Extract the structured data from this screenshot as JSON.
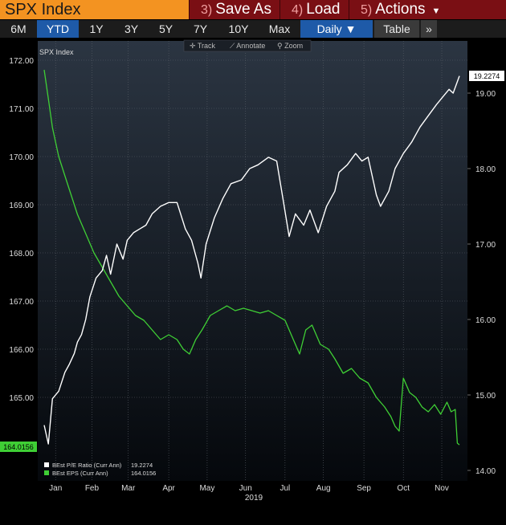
{
  "header": {
    "title": "SPX Index",
    "menu": [
      {
        "num": "3)",
        "label": "Save As",
        "caret": ""
      },
      {
        "num": "4)",
        "label": "Load",
        "caret": ""
      },
      {
        "num": "5)",
        "label": "Actions",
        "caret": "▼"
      }
    ]
  },
  "tabs": {
    "periods": [
      "6M",
      "YTD",
      "1Y",
      "3Y",
      "5Y",
      "7Y",
      "10Y",
      "Max"
    ],
    "active": "YTD",
    "frequency": "Daily ▼",
    "table": "Table",
    "more": "»"
  },
  "toolbar": {
    "track": "✛ Track",
    "annotate": "⟋ Annotate",
    "zoom": "⚲ Zoom"
  },
  "colors": {
    "pe_line": "#ffffff",
    "eps_line": "#3fcf35",
    "background_top": "#2b3542",
    "background_bottom": "#05080c",
    "title_bg": "#f39321",
    "menu_bg": "#7a0f14",
    "active_tab": "#1e5aa8"
  },
  "chart_data": {
    "type": "line",
    "title": "SPX Index",
    "xlabel": "2019",
    "x_ticks": [
      "Jan",
      "Feb",
      "Mar",
      "Apr",
      "May",
      "Jun",
      "Jul",
      "Aug",
      "Sep",
      "Oct",
      "Nov"
    ],
    "x_year": "2019",
    "left_axis": {
      "ylim": [
        164.0,
        172.0
      ],
      "ticks": [
        "165.00",
        "166.00",
        "167.00",
        "168.00",
        "169.00",
        "170.00",
        "171.00",
        "172.00"
      ],
      "last_value_label": "164.0156"
    },
    "right_axis": {
      "ylim": [
        14.0,
        19.0
      ],
      "ticks": [
        "14.00",
        "15.00",
        "16.00",
        "17.00",
        "18.00",
        "19.00"
      ],
      "last_value_label": "19.2274"
    },
    "grid": true,
    "legend_position": "bottom-left",
    "series": [
      {
        "name": "BEst P/E Ratio (Curr Ann)",
        "last": "19.2274",
        "axis": "right",
        "points": [
          [
            0.0,
            14.6
          ],
          [
            0.2,
            14.35
          ],
          [
            0.4,
            14.95
          ],
          [
            0.7,
            15.05
          ],
          [
            1.0,
            15.3
          ],
          [
            1.2,
            15.4
          ],
          [
            1.45,
            15.55
          ],
          [
            1.6,
            15.7
          ],
          [
            1.8,
            15.8
          ],
          [
            2.0,
            16.0
          ],
          [
            2.2,
            16.3
          ],
          [
            2.5,
            16.55
          ],
          [
            2.8,
            16.65
          ],
          [
            3.0,
            16.85
          ],
          [
            3.2,
            16.6
          ],
          [
            3.5,
            17.0
          ],
          [
            3.8,
            16.8
          ],
          [
            4.0,
            17.05
          ],
          [
            4.3,
            17.15
          ],
          [
            4.6,
            17.2
          ],
          [
            4.9,
            17.25
          ],
          [
            5.2,
            17.4
          ],
          [
            5.6,
            17.5
          ],
          [
            6.0,
            17.55
          ],
          [
            6.4,
            17.55
          ],
          [
            6.8,
            17.2
          ],
          [
            7.1,
            17.05
          ],
          [
            7.4,
            16.75
          ],
          [
            7.55,
            16.55
          ],
          [
            7.8,
            17.0
          ],
          [
            8.2,
            17.35
          ],
          [
            8.6,
            17.6
          ],
          [
            9.0,
            17.8
          ],
          [
            9.5,
            17.85
          ],
          [
            9.9,
            18.0
          ],
          [
            10.3,
            18.05
          ],
          [
            10.8,
            18.15
          ],
          [
            11.2,
            18.1
          ],
          [
            11.5,
            17.6
          ],
          [
            11.8,
            17.1
          ],
          [
            12.1,
            17.4
          ],
          [
            12.5,
            17.25
          ],
          [
            12.8,
            17.45
          ],
          [
            13.2,
            17.15
          ],
          [
            13.6,
            17.5
          ],
          [
            14.0,
            17.7
          ],
          [
            14.2,
            17.95
          ],
          [
            14.6,
            18.05
          ],
          [
            15.0,
            18.2
          ],
          [
            15.3,
            18.1
          ],
          [
            15.6,
            18.15
          ],
          [
            16.0,
            17.65
          ],
          [
            16.2,
            17.5
          ],
          [
            16.6,
            17.7
          ],
          [
            16.9,
            18.0
          ],
          [
            17.3,
            18.2
          ],
          [
            17.7,
            18.35
          ],
          [
            18.1,
            18.55
          ],
          [
            18.5,
            18.7
          ],
          [
            18.9,
            18.85
          ],
          [
            19.2,
            18.95
          ],
          [
            19.5,
            19.05
          ],
          [
            19.7,
            19.0
          ],
          [
            20.0,
            19.2274
          ]
        ]
      },
      {
        "name": "BEst EPS (Curr Ann)",
        "last": "164.0156",
        "axis": "left",
        "points": [
          [
            0.0,
            171.8
          ],
          [
            0.2,
            171.2
          ],
          [
            0.4,
            170.6
          ],
          [
            0.7,
            170.0
          ],
          [
            1.0,
            169.6
          ],
          [
            1.3,
            169.2
          ],
          [
            1.6,
            168.8
          ],
          [
            2.0,
            168.4
          ],
          [
            2.4,
            168.0
          ],
          [
            2.8,
            167.7
          ],
          [
            3.2,
            167.4
          ],
          [
            3.6,
            167.1
          ],
          [
            4.0,
            166.9
          ],
          [
            4.4,
            166.7
          ],
          [
            4.8,
            166.6
          ],
          [
            5.2,
            166.4
          ],
          [
            5.6,
            166.2
          ],
          [
            6.0,
            166.3
          ],
          [
            6.4,
            166.2
          ],
          [
            6.7,
            166.0
          ],
          [
            7.0,
            165.9
          ],
          [
            7.3,
            166.2
          ],
          [
            7.6,
            166.4
          ],
          [
            8.0,
            166.7
          ],
          [
            8.4,
            166.8
          ],
          [
            8.8,
            166.9
          ],
          [
            9.2,
            166.8
          ],
          [
            9.6,
            166.85
          ],
          [
            10.0,
            166.8
          ],
          [
            10.4,
            166.75
          ],
          [
            10.8,
            166.8
          ],
          [
            11.2,
            166.7
          ],
          [
            11.6,
            166.6
          ],
          [
            12.0,
            166.2
          ],
          [
            12.3,
            165.9
          ],
          [
            12.6,
            166.4
          ],
          [
            12.9,
            166.5
          ],
          [
            13.3,
            166.1
          ],
          [
            13.7,
            166.0
          ],
          [
            14.0,
            165.8
          ],
          [
            14.4,
            165.5
          ],
          [
            14.8,
            165.6
          ],
          [
            15.2,
            165.4
          ],
          [
            15.6,
            165.3
          ],
          [
            16.0,
            165.0
          ],
          [
            16.4,
            164.8
          ],
          [
            16.7,
            164.6
          ],
          [
            16.9,
            164.4
          ],
          [
            17.1,
            164.3
          ],
          [
            17.3,
            165.4
          ],
          [
            17.6,
            165.1
          ],
          [
            17.9,
            165.0
          ],
          [
            18.2,
            164.8
          ],
          [
            18.5,
            164.7
          ],
          [
            18.8,
            164.85
          ],
          [
            19.1,
            164.65
          ],
          [
            19.4,
            164.9
          ],
          [
            19.6,
            164.7
          ],
          [
            19.8,
            164.75
          ],
          [
            19.9,
            164.05
          ],
          [
            20.0,
            164.0156
          ]
        ]
      }
    ]
  }
}
